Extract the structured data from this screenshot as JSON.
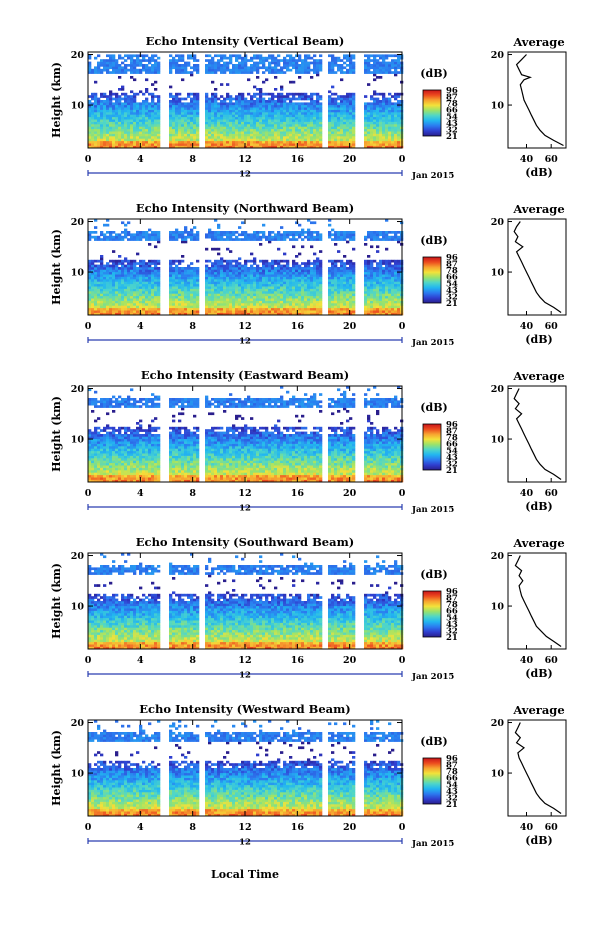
{
  "figure": {
    "time_axis_label": "Local Time",
    "colorbar": {
      "unit": "(dB)",
      "ticks": [
        "96",
        "87",
        "78",
        "66",
        "54",
        "43",
        "32",
        "21"
      ]
    },
    "gradient_colors": [
      "#2a1e8c",
      "#2f3fd0",
      "#2b7bf0",
      "#22b6f0",
      "#4fd6c8",
      "#9be36a",
      "#f3e23a",
      "#f7a330",
      "#ec4a1e",
      "#c9151a"
    ]
  },
  "chart_data": [
    {
      "type": "heatmap",
      "title": "Echo Intensity (Vertical Beam)",
      "ylabel": "Height (km)",
      "y_ticks": [
        "20",
        "10"
      ],
      "x_ticks": [
        "0",
        "4",
        "8",
        "12",
        "16",
        "20",
        "0"
      ],
      "date_marker": "12",
      "date_label": "Jan 2015",
      "xlim": [
        0,
        24
      ],
      "ylim": [
        1.5,
        20.5
      ],
      "gaps_hours": [
        [
          5.5,
          6.0
        ],
        [
          8.4,
          8.9
        ],
        [
          17.7,
          18.2
        ],
        [
          20.4,
          20.9
        ]
      ],
      "avg_profile": {
        "title": "Average",
        "xlabel": "(dB)",
        "x_ticks": [
          "40",
          "60"
        ],
        "y_ticks": [
          "20",
          "10"
        ],
        "xlim": [
          25,
          72
        ],
        "heights": [
          2,
          3,
          4,
          5,
          6,
          7,
          8,
          9,
          10,
          11,
          12,
          13,
          14,
          15,
          15.5,
          16,
          17,
          18,
          19,
          20
        ],
        "values": [
          70,
          62,
          55,
          51,
          48,
          46,
          44,
          42,
          40,
          38,
          37,
          36,
          35,
          38,
          43,
          36,
          34,
          32,
          36,
          40
        ]
      }
    },
    {
      "type": "heatmap",
      "title": "Echo Intensity (Northward Beam)",
      "ylabel": "Height (km)",
      "y_ticks": [
        "20",
        "10"
      ],
      "x_ticks": [
        "0",
        "4",
        "8",
        "12",
        "16",
        "20",
        "0"
      ],
      "date_marker": "12",
      "date_label": "Jan 2015",
      "xlim": [
        0,
        24
      ],
      "ylim": [
        1.5,
        20.5
      ],
      "gaps_hours": [
        [
          5.5,
          6.0
        ],
        [
          8.4,
          8.9
        ],
        [
          17.7,
          18.2
        ],
        [
          20.4,
          20.9
        ]
      ],
      "avg_profile": {
        "title": "Average",
        "xlabel": "(dB)",
        "x_ticks": [
          "40",
          "60"
        ],
        "y_ticks": [
          "20",
          "10"
        ],
        "xlim": [
          25,
          72
        ],
        "heights": [
          2,
          3,
          4,
          5,
          6,
          7,
          8,
          9,
          10,
          11,
          12,
          13,
          14,
          15,
          16,
          17,
          18,
          19,
          20
        ],
        "values": [
          68,
          62,
          55,
          51,
          48,
          46,
          44,
          42,
          40,
          38,
          36,
          34,
          32,
          37,
          31,
          33,
          30,
          32,
          35
        ]
      }
    },
    {
      "type": "heatmap",
      "title": "Echo Intensity (Eastward Beam)",
      "ylabel": "Height (km)",
      "y_ticks": [
        "20",
        "10"
      ],
      "x_ticks": [
        "0",
        "4",
        "8",
        "12",
        "16",
        "20",
        "0"
      ],
      "date_marker": "12",
      "date_label": "Jan 2015",
      "xlim": [
        0,
        24
      ],
      "ylim": [
        1.5,
        20.5
      ],
      "gaps_hours": [
        [
          5.5,
          6.0
        ],
        [
          8.4,
          8.9
        ],
        [
          17.7,
          18.2
        ],
        [
          20.4,
          20.9
        ]
      ],
      "avg_profile": {
        "title": "Average",
        "xlabel": "(dB)",
        "x_ticks": [
          "40",
          "60"
        ],
        "y_ticks": [
          "20",
          "10"
        ],
        "xlim": [
          25,
          72
        ],
        "heights": [
          2,
          3,
          4,
          5,
          6,
          7,
          8,
          9,
          10,
          11,
          12,
          13,
          14,
          15,
          16,
          17,
          18,
          19,
          20
        ],
        "values": [
          68,
          62,
          55,
          51,
          48,
          46,
          44,
          42,
          40,
          38,
          36,
          34,
          32,
          36,
          31,
          34,
          30,
          32,
          34
        ]
      }
    },
    {
      "type": "heatmap",
      "title": "Echo Intensity (Southward Beam)",
      "ylabel": "Height (km)",
      "y_ticks": [
        "20",
        "10"
      ],
      "x_ticks": [
        "0",
        "4",
        "8",
        "12",
        "16",
        "20",
        "0"
      ],
      "date_marker": "12",
      "date_label": "Jan 2015",
      "xlim": [
        0,
        24
      ],
      "ylim": [
        1.5,
        20.5
      ],
      "gaps_hours": [
        [
          5.5,
          6.0
        ],
        [
          8.4,
          8.9
        ],
        [
          17.7,
          18.2
        ],
        [
          20.4,
          20.9
        ]
      ],
      "avg_profile": {
        "title": "Average",
        "xlabel": "(dB)",
        "x_ticks": [
          "40",
          "60"
        ],
        "y_ticks": [
          "20",
          "10"
        ],
        "xlim": [
          25,
          72
        ],
        "heights": [
          2,
          3,
          4,
          5,
          6,
          7,
          8,
          9,
          10,
          11,
          12,
          13,
          14,
          15,
          16,
          17,
          18,
          19,
          20
        ],
        "values": [
          68,
          62,
          56,
          52,
          48,
          46,
          44,
          42,
          40,
          38,
          36,
          35,
          34,
          37,
          34,
          36,
          31,
          33,
          35
        ]
      }
    },
    {
      "type": "heatmap",
      "title": "Echo Intensity (Westward Beam)",
      "ylabel": "Height (km)",
      "y_ticks": [
        "20",
        "10"
      ],
      "x_ticks": [
        "0",
        "4",
        "8",
        "12",
        "16",
        "20",
        "0"
      ],
      "date_marker": "12",
      "date_label": "Jan 2015",
      "xlim": [
        0,
        24
      ],
      "ylim": [
        1.5,
        20.5
      ],
      "gaps_hours": [
        [
          5.5,
          6.0
        ],
        [
          8.4,
          8.9
        ],
        [
          17.7,
          18.2
        ],
        [
          20.4,
          20.9
        ]
      ],
      "avg_profile": {
        "title": "Average",
        "xlabel": "(dB)",
        "x_ticks": [
          "40",
          "60"
        ],
        "y_ticks": [
          "20",
          "10"
        ],
        "xlim": [
          25,
          72
        ],
        "heights": [
          2,
          3,
          4,
          5,
          6,
          7,
          8,
          9,
          10,
          11,
          12,
          13,
          14,
          15,
          16,
          17,
          18,
          19,
          20
        ],
        "values": [
          68,
          62,
          55,
          51,
          48,
          46,
          44,
          42,
          40,
          38,
          36,
          34,
          33,
          38,
          32,
          35,
          31,
          33,
          35
        ]
      }
    }
  ]
}
